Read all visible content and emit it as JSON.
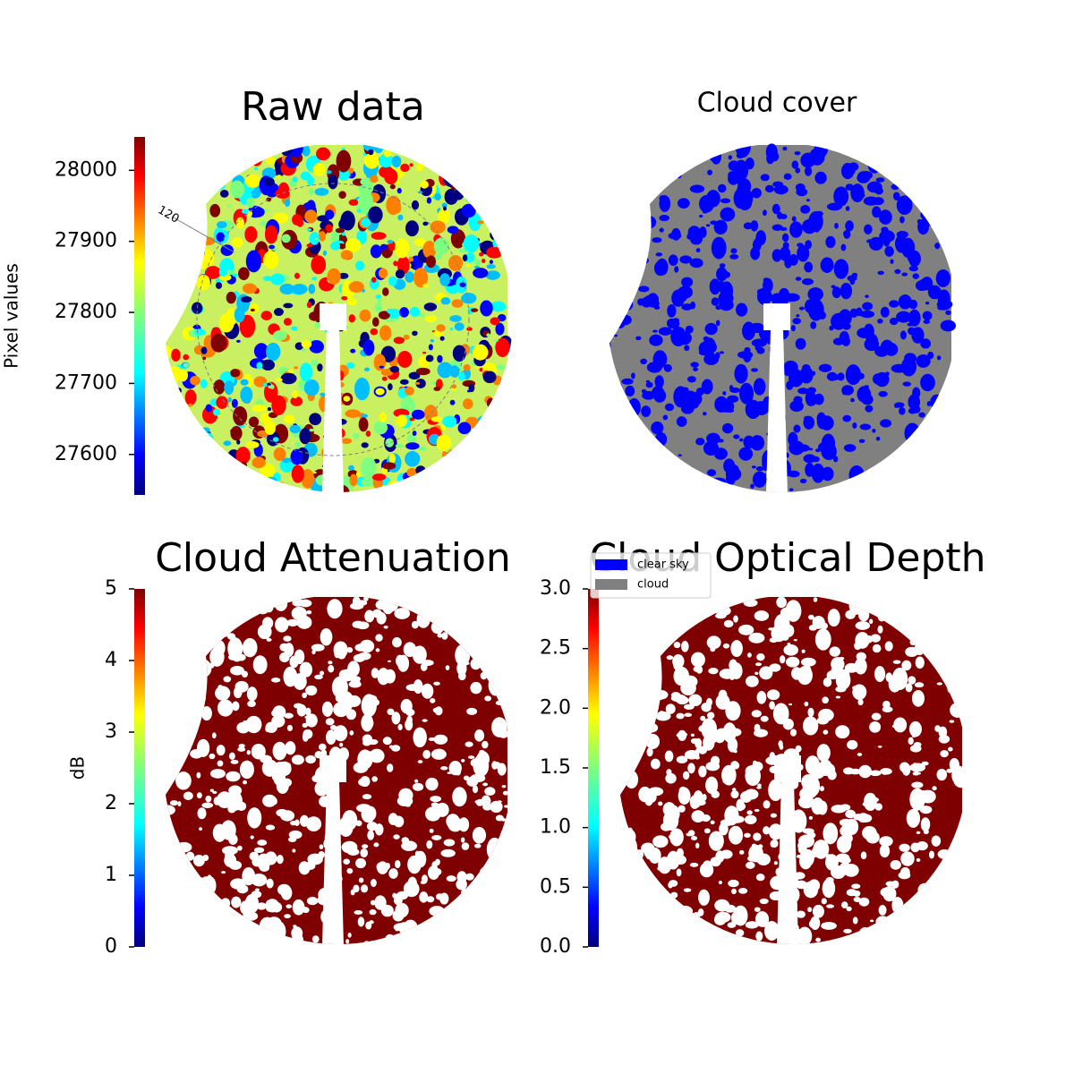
{
  "chart_data": [
    {
      "type": "image",
      "title": "Raw data",
      "colorbar_label": "Pixel values",
      "ylim": [
        27543,
        28047
      ],
      "yticks": [
        27600,
        27700,
        27800,
        27900,
        28000
      ],
      "annotations": [
        "120"
      ]
    },
    {
      "type": "image",
      "title": "Cloud cover",
      "legend": [
        {
          "name": "clear sky",
          "color": "#0000ff"
        },
        {
          "name": "cloud",
          "color": "#808080"
        }
      ]
    },
    {
      "type": "image",
      "title": "Cloud Attenuation",
      "colorbar_label": "dB",
      "ylim": [
        0,
        5
      ],
      "yticks": [
        0,
        1,
        2,
        3,
        4,
        5
      ]
    },
    {
      "type": "image",
      "title": "Cloud Optical Depth",
      "ylim": [
        0,
        3
      ],
      "yticks": [
        {
          "value": 0,
          "label": "0.0"
        },
        0.5,
        {
          "value": 1,
          "label": "1.0"
        },
        1.5,
        {
          "value": 2,
          "label": "2.0"
        },
        2.5,
        {
          "value": 3,
          "label": "3.0"
        }
      ]
    }
  ]
}
